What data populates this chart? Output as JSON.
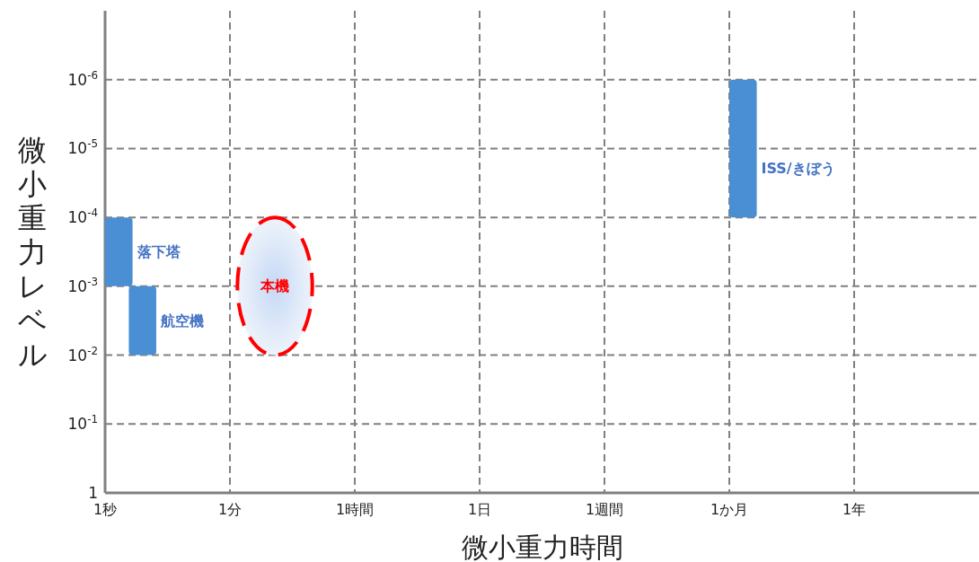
{
  "chart_data": {
    "type": "bar",
    "xlabel": "微小重力時間",
    "ylabel": "微小重力レベル",
    "categories": [
      "1秒",
      "1分",
      "1時間",
      "1日",
      "1週間",
      "1か月",
      "1年",
      null
    ],
    "log": "y",
    "ylim": [
      1,
      1e-07
    ],
    "yticks": [
      1,
      {
        "value": 0.1,
        "label": "10$^{-1}$"
      },
      {
        "value": 0.01,
        "label": "10$^{-2}$"
      },
      {
        "value": 0.001,
        "label": "10$^{-3}$"
      },
      {
        "value": 0.0001,
        "label": "10$^{-4}$"
      },
      {
        "value": 1e-05,
        "label": "10$^{-5}$"
      },
      {
        "value": 1e-06,
        "label": "10$^{-6}$"
      }
    ],
    "grid": true,
    "series": [
      {
        "name": "落下塔",
        "color": "#4a8fd4",
        "values": [
          0.0009,
          null,
          null,
          null,
          null,
          null,
          null,
          null
        ],
        "base": [
          0.0001,
          null,
          null,
          null,
          null,
          null,
          null,
          null
        ]
      },
      {
        "name": "航空機",
        "color": "#4a8fd4",
        "values": [
          0.009,
          null,
          null,
          null,
          null,
          null,
          null,
          null
        ],
        "base": [
          0.001,
          null,
          null,
          null,
          null,
          null,
          null,
          null
        ]
      },
      {
        "name": "本機",
        "color": "#ff0000",
        "line_style": "dashed",
        "values": [
          null,
          0.0099,
          null,
          null,
          null,
          null,
          null,
          null
        ],
        "base": [
          null,
          0.0001,
          null,
          null,
          null,
          null,
          null,
          null
        ]
      },
      {
        "name": "ISS/きぼう",
        "color": "#4a8fd4",
        "values": [
          null,
          null,
          null,
          null,
          null,
          9.9e-05,
          null,
          null
        ],
        "base": [
          null,
          null,
          null,
          null,
          null,
          1e-06,
          null,
          null
        ]
      }
    ]
  }
}
